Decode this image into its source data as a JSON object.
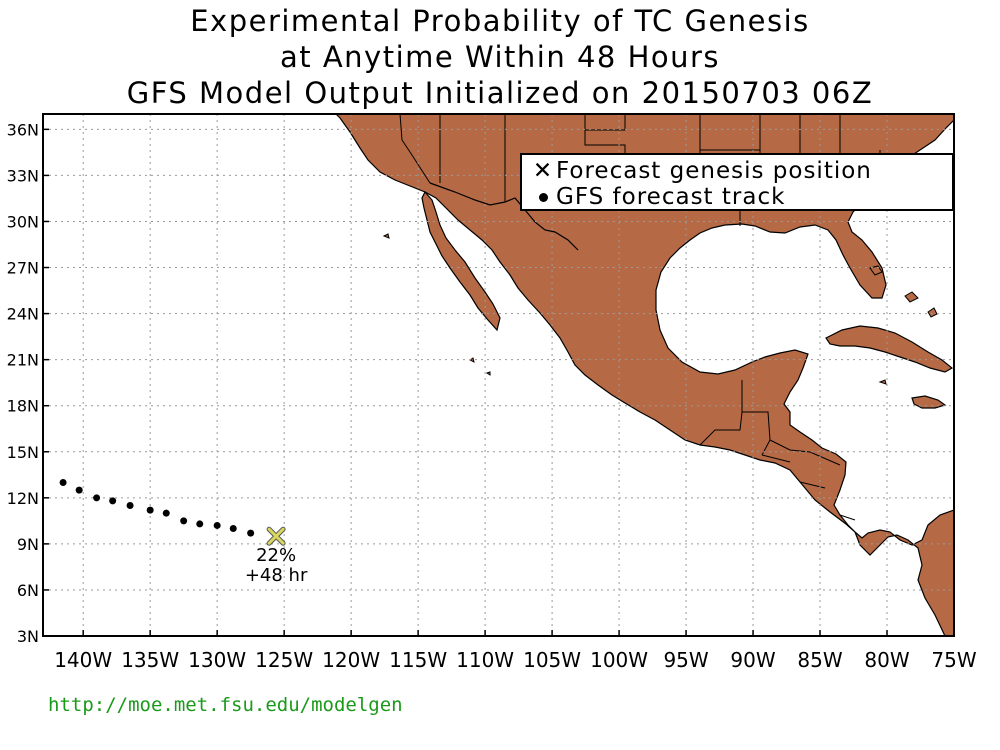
{
  "title": {
    "line1": "Experimental Probability of TC Genesis",
    "line2": "at Anytime Within 48 Hours",
    "line3": "GFS Model Output Initialized on 20150703 06Z"
  },
  "legend": {
    "genesis_symbol": "✕",
    "genesis_label": "Forecast genesis position",
    "track_label": "GFS forecast track"
  },
  "axes": {
    "x_ticks": [
      "140W",
      "135W",
      "130W",
      "125W",
      "120W",
      "115W",
      "110W",
      "105W",
      "100W",
      "95W",
      "90W",
      "85W",
      "80W",
      "75W"
    ],
    "y_ticks": [
      "36N",
      "33N",
      "30N",
      "27N",
      "24N",
      "21N",
      "18N",
      "15N",
      "12N",
      "9N",
      "6N",
      "3N"
    ],
    "lon_range": [
      -143,
      -75
    ],
    "lat_range": [
      3,
      37
    ],
    "grid": true
  },
  "genesis": {
    "lon": -125.6,
    "lat": 9.5,
    "probability_label": "22%",
    "time_label": "+48 hr"
  },
  "track": [
    {
      "lon": -141.5,
      "lat": 13.0
    },
    {
      "lon": -140.3,
      "lat": 12.5
    },
    {
      "lon": -139.0,
      "lat": 12.0
    },
    {
      "lon": -137.8,
      "lat": 11.8
    },
    {
      "lon": -136.5,
      "lat": 11.5
    },
    {
      "lon": -135.0,
      "lat": 11.2
    },
    {
      "lon": -133.8,
      "lat": 11.0
    },
    {
      "lon": -132.5,
      "lat": 10.5
    },
    {
      "lon": -131.3,
      "lat": 10.3
    },
    {
      "lon": -130.0,
      "lat": 10.2
    },
    {
      "lon": -128.8,
      "lat": 10.0
    },
    {
      "lon": -127.5,
      "lat": 9.7
    }
  ],
  "credit": "http://moe.met.fsu.edu/modelgen",
  "colors": {
    "land": "#b56a45",
    "coast": "#000000",
    "grid": "#9a9a9a",
    "genesis_marker": "#d8d860",
    "credit_text": "#1a9a1a"
  }
}
